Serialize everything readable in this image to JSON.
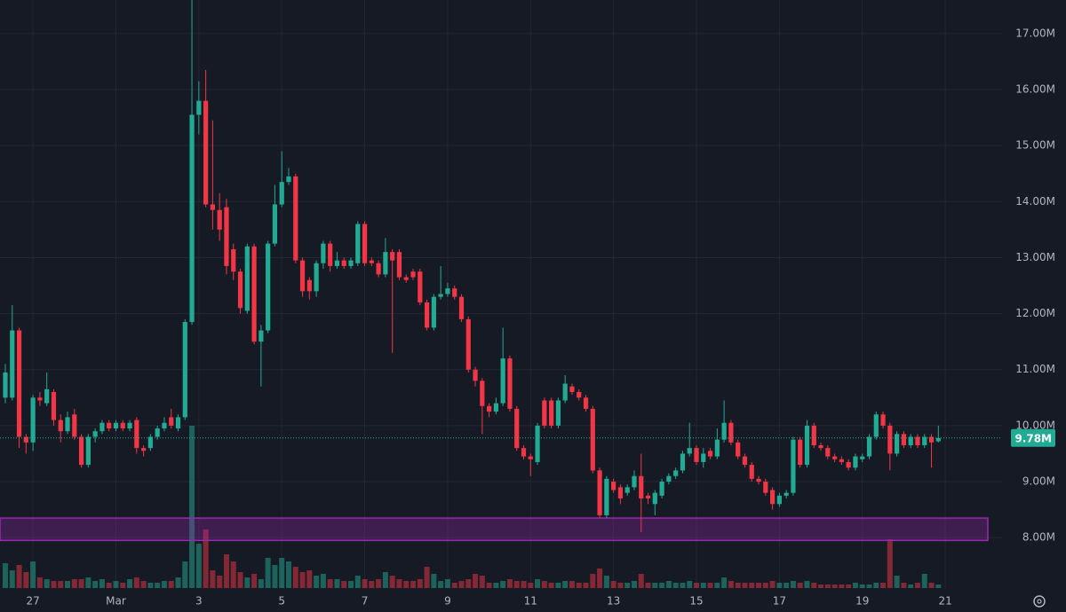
{
  "chart_data": {
    "type": "candlestick",
    "categories": [
      null,
      null,
      null,
      null,
      "27",
      null,
      null,
      null,
      null,
      null,
      null,
      null,
      null,
      null,
      null,
      null,
      "Mar",
      null,
      null,
      null,
      null,
      null,
      null,
      null,
      null,
      null,
      null,
      null,
      "3",
      null,
      null,
      null,
      null,
      null,
      null,
      null,
      null,
      null,
      null,
      null,
      "5",
      null,
      null,
      null,
      null,
      null,
      null,
      null,
      null,
      null,
      null,
      null,
      "7",
      null,
      null,
      null,
      null,
      null,
      null,
      null,
      null,
      null,
      null,
      null,
      "9",
      null,
      null,
      null,
      null,
      null,
      null,
      null,
      null,
      null,
      null,
      null,
      "11",
      null,
      null,
      null,
      null,
      null,
      null,
      null,
      null,
      null,
      null,
      null,
      "13",
      null,
      null,
      null,
      null,
      null,
      null,
      null,
      null,
      null,
      null,
      null,
      "15",
      null,
      null,
      null,
      null,
      null,
      null,
      null,
      null,
      null,
      null,
      null,
      "17",
      null,
      null,
      null,
      null,
      null,
      null,
      null,
      null,
      null,
      null,
      null,
      "19",
      null,
      null,
      null,
      null,
      null,
      null,
      null,
      null,
      null,
      null,
      null,
      "21"
    ],
    "open": [
      10.5,
      10.5,
      11.7,
      9.8,
      9.7,
      10.5,
      10.4,
      10.6,
      10.1,
      9.9,
      10.2,
      9.8,
      9.3,
      9.8,
      9.9,
      10.05,
      9.95,
      10.05,
      9.95,
      10.1,
      9.6,
      9.6,
      9.8,
      9.95,
      10.15,
      9.95,
      10.15,
      11.85,
      15.55,
      15.8,
      13.95,
      13.85,
      13.9,
      13.15,
      12.75,
      12.05,
      13.2,
      11.5,
      11.7,
      13.25,
      13.95,
      14.35,
      14.45,
      12.95,
      12.6,
      12.4,
      12.9,
      13.25,
      12.85,
      12.95,
      12.85,
      12.9,
      13.6,
      12.95,
      12.9,
      12.7,
      13.1,
      13.1,
      12.65,
      12.75,
      12.75,
      12.2,
      11.75,
      12.3,
      12.35,
      12.45,
      12.3,
      11.9,
      11.0,
      10.8,
      10.35,
      10.25,
      10.4,
      11.2,
      10.3,
      9.6,
      9.45,
      9.35,
      10.45,
      10.45,
      10.0,
      10.45,
      10.7,
      10.6,
      10.5,
      10.3,
      9.2,
      8.4,
      9.0,
      8.9,
      8.8,
      8.9,
      9.1,
      8.75,
      8.6,
      8.75,
      9.0,
      9.1,
      9.2,
      9.5,
      9.6,
      9.35,
      9.55,
      9.45,
      9.75,
      10.05,
      9.7,
      9.45,
      9.3,
      9.05,
      9.0,
      8.85,
      8.6,
      8.75,
      8.8,
      9.75,
      9.3,
      10.0,
      9.65,
      9.6,
      9.45,
      9.4,
      9.35,
      9.25,
      9.4,
      9.45,
      9.8,
      10.2,
      10.0,
      9.5,
      9.85,
      9.65,
      9.8,
      9.65,
      9.8,
      9.72,
      null
    ],
    "high": [
      11.1,
      12.15,
      11.75,
      9.85,
      10.55,
      10.6,
      10.95,
      10.65,
      10.2,
      10.25,
      10.3,
      9.85,
      9.85,
      9.95,
      10.1,
      10.1,
      10.1,
      10.1,
      10.1,
      10.15,
      9.65,
      9.85,
      10.0,
      10.15,
      10.3,
      10.2,
      11.9,
      17.6,
      16.15,
      16.35,
      15.45,
      14.15,
      14.05,
      13.25,
      12.8,
      13.25,
      13.25,
      11.8,
      13.3,
      14.3,
      14.9,
      14.6,
      14.5,
      13.0,
      12.65,
      12.95,
      13.3,
      13.3,
      13.1,
      13.0,
      13.0,
      13.65,
      13.65,
      13.0,
      12.95,
      13.35,
      13.15,
      13.15,
      12.7,
      12.8,
      12.8,
      12.25,
      12.35,
      12.85,
      12.55,
      12.5,
      12.35,
      11.95,
      11.05,
      10.85,
      10.4,
      10.5,
      11.75,
      11.25,
      10.35,
      9.65,
      9.5,
      10.05,
      10.5,
      10.5,
      10.5,
      10.9,
      10.75,
      10.65,
      10.55,
      10.35,
      9.25,
      9.1,
      9.05,
      8.95,
      8.95,
      9.2,
      9.5,
      8.8,
      8.85,
      9.05,
      9.15,
      9.25,
      9.55,
      10.05,
      9.65,
      9.6,
      9.6,
      9.95,
      10.45,
      10.1,
      9.75,
      9.5,
      9.35,
      9.1,
      9.05,
      8.9,
      8.8,
      8.85,
      9.8,
      9.8,
      10.1,
      10.05,
      9.7,
      9.65,
      9.5,
      9.45,
      9.4,
      9.5,
      9.5,
      9.85,
      10.25,
      10.25,
      10.05,
      9.9,
      9.9,
      9.85,
      9.85,
      9.85,
      9.85,
      10.0,
      null
    ],
    "low": [
      10.4,
      10.45,
      9.6,
      9.5,
      9.55,
      10.35,
      10.35,
      10.0,
      9.7,
      9.85,
      9.75,
      9.25,
      9.25,
      9.7,
      9.85,
      9.9,
      9.9,
      9.9,
      9.9,
      9.5,
      9.45,
      9.55,
      9.75,
      9.9,
      9.95,
      9.9,
      10.1,
      11.8,
      15.2,
      13.9,
      13.5,
      13.3,
      12.7,
      12.6,
      12.0,
      12.0,
      11.45,
      10.7,
      11.65,
      13.2,
      13.9,
      14.3,
      12.9,
      12.3,
      12.25,
      12.3,
      12.8,
      12.75,
      12.8,
      12.8,
      12.8,
      12.85,
      12.85,
      12.85,
      12.65,
      12.65,
      11.3,
      12.6,
      12.55,
      12.6,
      12.15,
      11.7,
      11.7,
      12.25,
      12.3,
      12.25,
      11.85,
      10.95,
      10.7,
      9.85,
      10.15,
      10.2,
      10.35,
      10.25,
      9.55,
      9.4,
      9.1,
      9.3,
      9.95,
      9.95,
      9.95,
      10.4,
      10.55,
      10.45,
      10.25,
      9.15,
      8.35,
      8.35,
      8.8,
      8.6,
      8.75,
      8.85,
      8.1,
      8.6,
      8.4,
      8.7,
      8.95,
      9.05,
      9.15,
      9.45,
      9.3,
      9.25,
      9.4,
      9.4,
      9.7,
      9.65,
      9.4,
      9.25,
      9.0,
      8.95,
      8.75,
      8.5,
      8.55,
      8.7,
      8.75,
      9.25,
      9.25,
      9.6,
      9.55,
      9.4,
      9.35,
      9.3,
      9.2,
      9.2,
      9.35,
      9.4,
      9.75,
      9.95,
      9.2,
      9.45,
      9.6,
      9.6,
      9.6,
      9.6,
      9.25,
      9.7,
      null
    ],
    "close": [
      10.95,
      11.7,
      9.8,
      9.7,
      10.5,
      10.45,
      10.65,
      10.1,
      9.9,
      10.15,
      9.8,
      9.3,
      9.8,
      9.9,
      10.05,
      9.95,
      10.05,
      9.95,
      10.05,
      9.6,
      9.55,
      9.8,
      9.95,
      10.05,
      10.0,
      10.15,
      11.85,
      15.55,
      15.8,
      13.95,
      13.85,
      13.5,
      12.85,
      12.75,
      12.1,
      13.2,
      11.5,
      11.7,
      13.25,
      13.95,
      14.35,
      14.45,
      12.95,
      12.4,
      12.4,
      12.9,
      13.25,
      12.85,
      12.95,
      12.85,
      12.95,
      13.6,
      12.9,
      12.9,
      12.7,
      13.1,
      12.95,
      12.65,
      12.6,
      12.65,
      12.2,
      11.75,
      12.3,
      12.35,
      12.45,
      12.3,
      11.9,
      11.0,
      10.8,
      10.35,
      10.25,
      10.4,
      11.2,
      10.3,
      9.6,
      9.45,
      9.4,
      10.0,
      10.0,
      10.0,
      10.45,
      10.75,
      10.6,
      10.5,
      10.3,
      9.2,
      8.4,
      9.05,
      8.85,
      8.7,
      8.9,
      9.1,
      8.7,
      8.7,
      8.8,
      9.0,
      9.1,
      9.2,
      9.5,
      9.6,
      9.35,
      9.5,
      9.45,
      9.75,
      10.05,
      9.7,
      9.45,
      9.3,
      9.05,
      9.0,
      8.8,
      8.6,
      8.75,
      8.8,
      9.75,
      9.3,
      10.0,
      9.65,
      9.6,
      9.45,
      9.4,
      9.35,
      9.25,
      9.45,
      9.45,
      9.8,
      10.2,
      10.0,
      9.5,
      9.85,
      9.65,
      9.8,
      9.65,
      9.8,
      9.7,
      9.78,
      null
    ],
    "volume": [
      28,
      20,
      26,
      18,
      30,
      12,
      10,
      8,
      8,
      8,
      10,
      10,
      12,
      8,
      10,
      6,
      8,
      6,
      10,
      12,
      8,
      6,
      6,
      8,
      8,
      12,
      30,
      183,
      50,
      66,
      20,
      14,
      38,
      30,
      18,
      12,
      16,
      10,
      34,
      26,
      34,
      30,
      24,
      18,
      20,
      14,
      16,
      10,
      10,
      8,
      8,
      14,
      10,
      8,
      10,
      18,
      14,
      10,
      8,
      8,
      10,
      24,
      16,
      8,
      10,
      6,
      8,
      10,
      16,
      14,
      6,
      6,
      8,
      10,
      8,
      8,
      6,
      10,
      8,
      6,
      6,
      8,
      8,
      6,
      6,
      16,
      22,
      14,
      8,
      6,
      6,
      8,
      16,
      6,
      6,
      6,
      8,
      6,
      6,
      8,
      6,
      6,
      6,
      6,
      12,
      8,
      6,
      6,
      6,
      6,
      6,
      8,
      6,
      6,
      8,
      6,
      8,
      6,
      4,
      4,
      4,
      4,
      4,
      6,
      4,
      4,
      6,
      6,
      55,
      14,
      6,
      4,
      6,
      16,
      6,
      4,
      null
    ],
    "ylim": [
      7.1,
      17.6
    ],
    "yticks": [
      {
        "value": 8,
        "label": "8.00M"
      },
      {
        "value": 9,
        "label": "9.00M"
      },
      {
        "value": 10,
        "label": "10.00M"
      },
      {
        "value": 11,
        "label": "11.00M"
      },
      {
        "value": 12,
        "label": "12.00M"
      },
      {
        "value": 13,
        "label": "13.00M"
      },
      {
        "value": 14,
        "label": "14.00M"
      },
      {
        "value": 15,
        "label": "15.00M"
      },
      {
        "value": 16,
        "label": "16.00M"
      },
      {
        "value": 17,
        "label": "17.00M"
      }
    ],
    "volume_lim": [
      0,
      200
    ],
    "last": {
      "value": 9.78,
      "label": "9.78M"
    },
    "zone": [
      7.95,
      8.35
    ],
    "up_color": "#22ab94",
    "down_color": "#f23645",
    "zone_color": "#9c27b0",
    "grid": true
  }
}
